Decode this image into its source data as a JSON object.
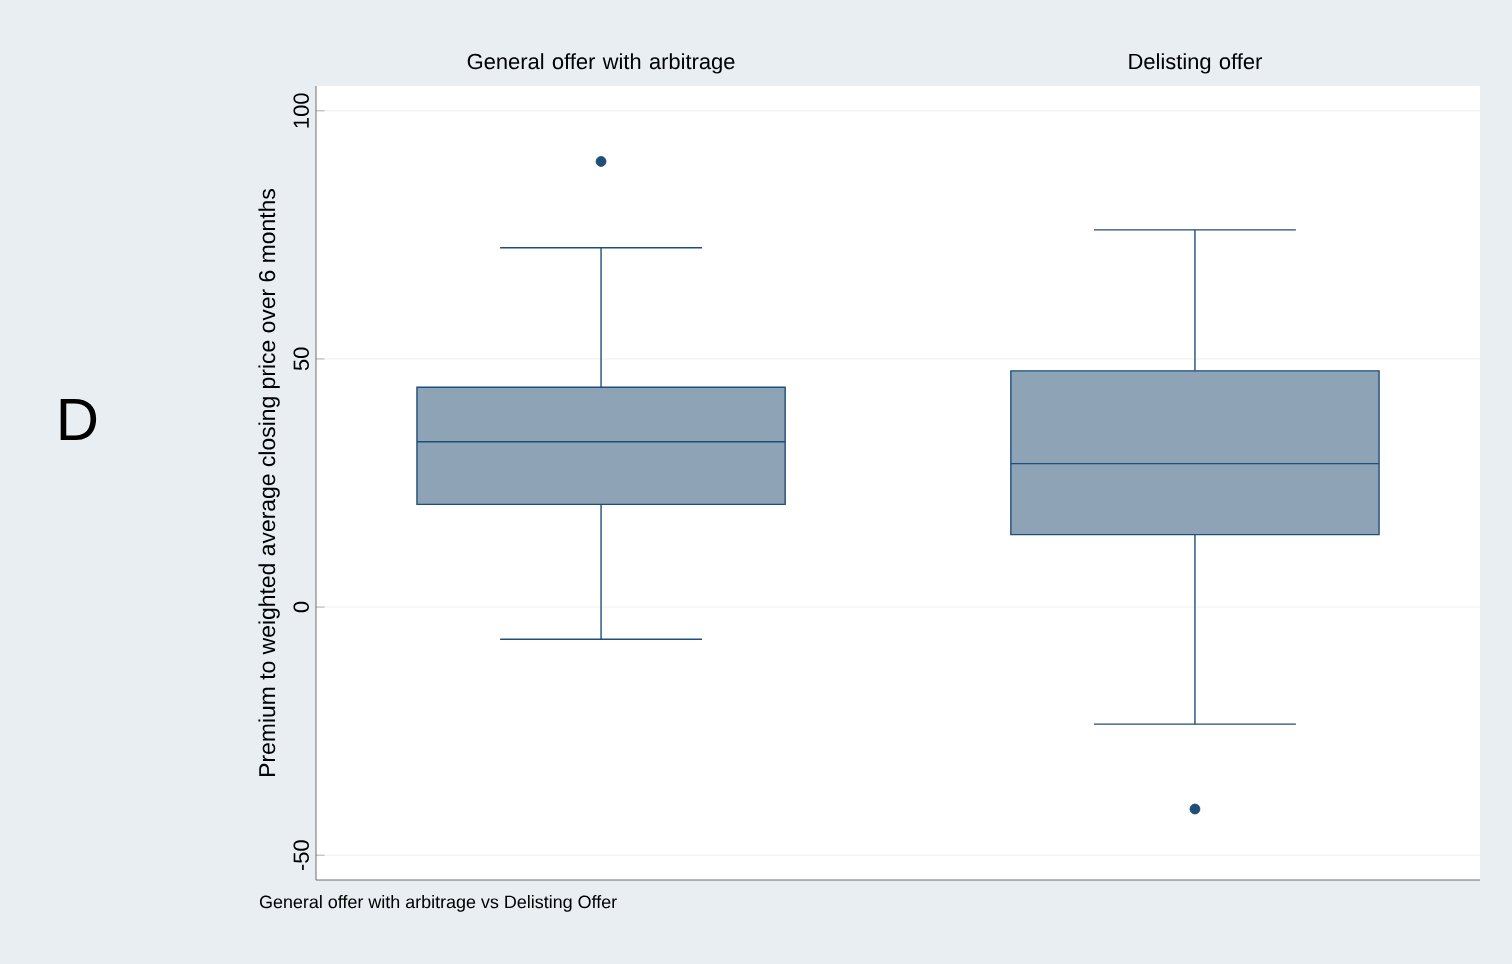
{
  "chart_data": {
    "type": "box",
    "categories": [
      "General offer with arbitrage",
      "Delisting offer"
    ],
    "ylabel": "Premium to weighted average closing price over 6 months",
    "xlabel": "General offer with arbitrage vs Delisting Offer",
    "annotations": [
      "D"
    ],
    "boxes": [
      {
        "low": -6.5,
        "q1": 20.7,
        "median": 33.3,
        "q3": 44.3,
        "high": 72.4,
        "outliers": [
          89.8
        ]
      },
      {
        "low": -23.6,
        "q1": 14.6,
        "median": 28.9,
        "q3": 47.6,
        "high": 76,
        "outliers": [
          -40.7
        ]
      }
    ],
    "color": "#8fa3b7",
    "marker": "circle",
    "ylim": [
      -55,
      105
    ],
    "yticks": [
      -50,
      0,
      50,
      100
    ],
    "grid": "y"
  }
}
